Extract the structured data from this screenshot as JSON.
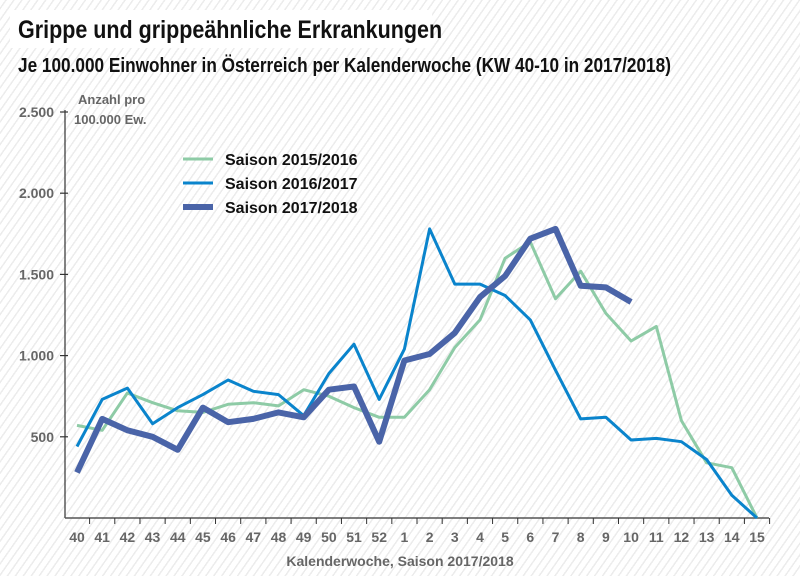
{
  "title": "Grippe und grippeähnliche Erkrankungen",
  "subtitle": "Je 100.000 Einwohner in Österreich per Kalenderwoche (KW 40-10 in 2017/2018)",
  "chart_data": {
    "type": "line",
    "title": "Grippe und grippeähnliche Erkrankungen",
    "subtitle": "Je 100.000 Einwohner in Österreich per Kalenderwoche (KW 40-10 in 2017/2018)",
    "xlabel": "Kalenderwoche, Saison 2017/2018",
    "ylabel": "Anzahl pro 100.000 Ew.",
    "ylabel_lines": [
      "Anzahl pro",
      "100.000 Ew."
    ],
    "ylim": [
      0,
      2500
    ],
    "yticks": [
      500,
      1000,
      1500,
      2000,
      2500
    ],
    "ytick_labels": [
      "500",
      "1.000",
      "1.500",
      "2.000",
      "2.500"
    ],
    "grid": false,
    "legend_position": "top-left",
    "categories": [
      "40",
      "41",
      "42",
      "43",
      "44",
      "45",
      "46",
      "47",
      "48",
      "49",
      "50",
      "51",
      "52",
      "1",
      "2",
      "3",
      "4",
      "5",
      "6",
      "7",
      "8",
      "9",
      "10",
      "11",
      "12",
      "13",
      "14",
      "15"
    ],
    "series": [
      {
        "name": "Saison 2015/2016",
        "color": "#8ecba6",
        "width": 3,
        "values": [
          570,
          540,
          770,
          710,
          660,
          650,
          700,
          710,
          690,
          790,
          750,
          680,
          620,
          620,
          790,
          1050,
          1220,
          1600,
          1700,
          1350,
          1520,
          1260,
          1090,
          1180,
          600,
          340,
          310,
          0
        ]
      },
      {
        "name": "Saison 2016/2017",
        "color": "#0a84cc",
        "width": 3,
        "values": [
          440,
          730,
          800,
          580,
          680,
          760,
          850,
          780,
          760,
          630,
          890,
          1070,
          730,
          1040,
          1780,
          1440,
          1440,
          1370,
          1220,
          910,
          610,
          620,
          480,
          490,
          470,
          360,
          140,
          0
        ]
      },
      {
        "name": "Saison 2017/2018",
        "color": "#4a64a8",
        "width": 6,
        "values": [
          280,
          610,
          540,
          500,
          420,
          680,
          590,
          610,
          650,
          620,
          790,
          810,
          470,
          970,
          1010,
          1140,
          1360,
          1490,
          1720,
          1780,
          1430,
          1420,
          1330,
          null,
          null,
          null,
          null,
          null
        ]
      }
    ]
  }
}
